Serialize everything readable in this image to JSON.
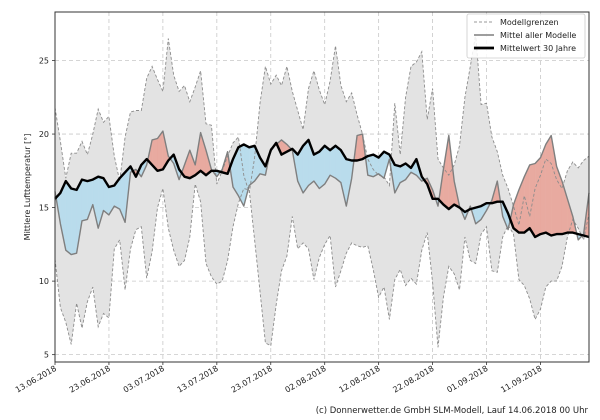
{
  "chart_data": {
    "type": "area",
    "title": "",
    "xlabel": "",
    "ylabel": "Mittlere Lufttemperatur [°]",
    "ylim": [
      4.5,
      28.3
    ],
    "yticks": [
      5,
      10,
      15,
      20,
      25
    ],
    "ytick_labels": [
      "5",
      "10",
      "15",
      "20",
      "25"
    ],
    "x_start_date": "13.06.2018",
    "x_days": 99,
    "xticks_day": [
      0,
      10,
      20,
      30,
      40,
      50,
      60,
      70,
      80,
      90
    ],
    "xtick_labels": [
      "13.06.2018",
      "23.06.2018",
      "03.07.2018",
      "13.07.2018",
      "23.07.2018",
      "02.08.2018",
      "12.08.2018",
      "22.08.2018",
      "01.09.2018",
      "11.09.2018"
    ],
    "grid": true,
    "legend_position": "top-right",
    "legend": [
      {
        "label": "Modellgrenzen",
        "style": "dashed-gray"
      },
      {
        "label": "Mittel aller Modelle",
        "style": "solid-gray"
      },
      {
        "label": "Mittelwert 30 Jahre",
        "style": "solid-black-thick"
      }
    ],
    "colors": {
      "band": "#e3e3e3",
      "band_edge": "#8c8c8c",
      "model_mean": "#7f7f7f",
      "clim_mean": "#000000",
      "warmer": "#e8aaa0",
      "colder": "#b9dcec",
      "grid": "#c8c8c8"
    },
    "series": [
      {
        "name": "Modellgrenzen oben",
        "values": [
          21.8,
          19.5,
          17.0,
          18.7,
          18.7,
          19.5,
          18.6,
          20.0,
          21.7,
          20.8,
          21.2,
          18.5,
          16.8,
          19.8,
          21.5,
          21.6,
          21.6,
          23.8,
          24.6,
          23.7,
          22.9,
          26.5,
          24.0,
          22.9,
          23.3,
          22.2,
          23.2,
          24.3,
          20.7,
          20.6,
          16.6,
          17.5,
          18.5,
          19.4,
          19.8,
          17.2,
          16.0,
          18.4,
          22.1,
          24.6,
          23.4,
          24.0,
          23.3,
          24.6,
          22.9,
          21.6,
          20.3,
          23.1,
          24.3,
          23.0,
          22.0,
          23.6,
          26.0,
          23.3,
          22.2,
          22.8,
          21.3,
          20.0,
          18.3,
          17.6,
          17.2,
          17.1,
          16.5,
          22.1,
          18.6,
          22.5,
          24.6,
          24.9,
          25.6,
          21.0,
          23.1,
          18.3,
          17.7,
          17.2,
          17.9,
          19.2,
          22.5,
          24.6,
          26.8,
          22.0,
          22.1,
          19.8,
          18.8,
          17.2,
          16.3,
          15.1,
          13.8,
          15.8,
          14.4,
          16.3,
          17.2,
          18.3,
          18.0,
          16.9,
          16.3,
          17.5,
          18.1,
          17.7,
          18.2,
          18.5
        ]
      },
      {
        "name": "Modellgrenzen unten",
        "values": [
          11.5,
          8.2,
          7.2,
          5.7,
          8.5,
          6.8,
          8.6,
          9.6,
          6.9,
          7.8,
          7.5,
          12.2,
          12.8,
          9.4,
          12.2,
          13.5,
          13.7,
          10.2,
          12.0,
          15.0,
          16.3,
          13.6,
          12.1,
          11.0,
          11.4,
          13.0,
          16.6,
          15.4,
          11.2,
          10.3,
          9.8,
          10.0,
          11.4,
          13.7,
          15.3,
          16.3,
          16.2,
          12.8,
          9.3,
          5.8,
          5.6,
          8.4,
          10.7,
          11.7,
          14.4,
          12.2,
          12.6,
          12.2,
          10.1,
          11.6,
          12.5,
          13.1,
          9.6,
          10.7,
          11.9,
          12.6,
          12.4,
          12.3,
          12.4,
          10.8,
          8.9,
          9.6,
          7.4,
          10.1,
          10.8,
          9.7,
          10.2,
          9.8,
          12.1,
          13.3,
          9.9,
          5.5,
          8.9,
          11.0,
          10.5,
          9.4,
          13.0,
          11.4,
          11.2,
          13.2,
          13.7,
          10.7,
          10.6,
          13.0,
          13.8,
          13.2,
          10.1,
          9.7,
          8.8,
          7.4,
          8.1,
          9.6,
          10.0,
          10.0,
          11.0,
          13.0,
          14.2,
          13.6,
          12.8,
          14.6
        ]
      },
      {
        "name": "Mittel aller Modelle",
        "values": [
          16.1,
          13.9,
          12.1,
          11.8,
          11.9,
          14.1,
          14.2,
          15.2,
          13.6,
          14.8,
          14.5,
          15.1,
          14.9,
          14.0,
          17.4,
          17.6,
          17.1,
          17.9,
          19.6,
          19.7,
          20.2,
          18.5,
          18.0,
          16.9,
          17.9,
          18.9,
          17.9,
          20.1,
          18.9,
          17.6,
          17.1,
          17.6,
          18.8,
          16.4,
          15.8,
          15.1,
          16.5,
          16.8,
          17.3,
          17.2,
          19.0,
          19.3,
          19.6,
          19.3,
          18.9,
          16.8,
          16.0,
          16.5,
          16.8,
          16.3,
          16.6,
          17.2,
          17.0,
          16.7,
          15.1,
          17.0,
          19.9,
          20.0,
          17.2,
          17.1,
          17.3,
          17.0,
          18.3,
          16.0,
          16.7,
          16.9,
          17.4,
          17.2,
          16.8,
          17.0,
          16.2,
          15.1,
          17.6,
          19.9,
          16.8,
          15.1,
          14.2,
          15.1,
          13.9,
          14.2,
          14.8,
          15.5,
          16.8,
          14.4,
          13.5,
          15.2,
          16.2,
          17.1,
          17.9,
          18.0,
          18.4,
          19.3,
          19.9,
          17.8,
          16.8,
          15.6,
          14.4,
          12.8,
          13.2,
          16.0
        ]
      },
      {
        "name": "Mittelwert 30 Jahre",
        "values": [
          15.6,
          16.0,
          16.8,
          16.3,
          16.2,
          16.9,
          16.8,
          16.9,
          17.1,
          17.0,
          16.4,
          16.5,
          17.0,
          17.4,
          17.8,
          17.1,
          17.9,
          18.3,
          17.9,
          17.5,
          17.6,
          18.2,
          18.6,
          17.6,
          17.1,
          17.0,
          17.2,
          17.5,
          17.2,
          17.5,
          17.5,
          17.4,
          17.3,
          18.3,
          19.1,
          19.3,
          19.1,
          19.2,
          18.4,
          17.8,
          18.9,
          19.4,
          18.6,
          18.8,
          19.0,
          18.6,
          19.2,
          19.6,
          18.6,
          18.8,
          19.2,
          18.9,
          19.2,
          18.9,
          18.3,
          18.2,
          18.2,
          18.3,
          18.5,
          18.6,
          18.4,
          18.8,
          18.6,
          17.9,
          17.8,
          18.0,
          17.7,
          18.3,
          17.1,
          16.6,
          15.6,
          15.6,
          15.2,
          14.9,
          15.2,
          15.0,
          14.7,
          14.9,
          15.0,
          15.1,
          15.3,
          15.3,
          15.4,
          15.4,
          14.6,
          13.6,
          13.3,
          13.3,
          13.6,
          13.0,
          13.2,
          13.3,
          13.1,
          13.2,
          13.2,
          13.3,
          13.3,
          13.2,
          13.1,
          13.0
        ]
      }
    ]
  },
  "footer": {
    "credit": "(c) Donnerwetter.de GmbH SLM-Modell, Lauf 14.06.2018 00 Uhr"
  }
}
